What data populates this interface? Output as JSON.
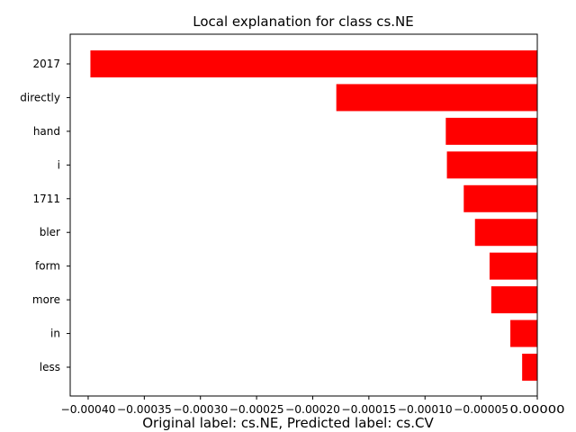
{
  "chart_data": {
    "type": "bar",
    "orientation": "horizontal",
    "title": "Local explanation for class cs.NE",
    "caption": "Original label: cs.NE, Predicted label: cs.CV",
    "categories": [
      "2017",
      "directly",
      "hand",
      "i",
      "1711",
      "bler",
      "form",
      "more",
      "in",
      "less"
    ],
    "values": [
      -0.000398,
      -0.000179,
      -8.15e-05,
      -8.05e-05,
      -6.55e-05,
      -5.55e-05,
      -4.25e-05,
      -4.1e-05,
      -2.4e-05,
      -1.35e-05
    ],
    "xlim": [
      -0.000416,
      0.0
    ],
    "xticks": [
      -0.0004,
      -0.00035,
      -0.0003,
      -0.00025,
      -0.0002,
      -0.00015,
      -0.0001,
      -5e-05,
      0.0
    ],
    "xtick_labels": [
      "−0.00040",
      "−0.00035",
      "−0.00030",
      "−0.00025",
      "−0.00020",
      "−0.00015",
      "−0.00010",
      "−0.00005",
      "0.00000"
    ],
    "xlabel": "",
    "ylabel": "",
    "bar_color": "#ff0000",
    "grid": false,
    "legend": "none"
  }
}
